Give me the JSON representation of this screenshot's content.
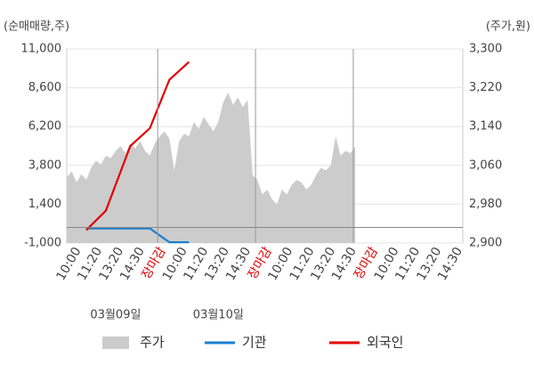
{
  "chart_data": {
    "type": "line",
    "ylabel": "(순매매량,주)",
    "y2label": "(주가,원)",
    "xlim": [
      0,
      81
    ],
    "ylim": [
      -1000,
      11000
    ],
    "yticks": [
      {
        "value": -1000,
        "label": "-1,000"
      },
      {
        "value": 1400,
        "label": "1,400"
      },
      {
        "value": 3800,
        "label": "3,800"
      },
      {
        "value": 6200,
        "label": "6,200"
      },
      {
        "value": 8600,
        "label": "8,600"
      },
      {
        "value": 11000,
        "label": "11,000"
      }
    ],
    "y2lim": [
      2900,
      3300
    ],
    "y2ticks": [
      {
        "value": 2900,
        "label": "2,900"
      },
      {
        "value": 2980,
        "label": "2,980"
      },
      {
        "value": 3060,
        "label": "3,060"
      },
      {
        "value": 3140,
        "label": "3,140"
      },
      {
        "value": 3220,
        "label": "3,220"
      },
      {
        "value": 3300,
        "label": "3,300"
      }
    ],
    "xticks": [
      {
        "value": 2.3,
        "label": "10:00"
      },
      {
        "value": 6.6,
        "label": "11:20"
      },
      {
        "value": 11,
        "label": "13:20"
      },
      {
        "value": 15.3,
        "label": "14:30"
      },
      {
        "value": 19.6,
        "label": "장마감",
        "color": "#e00000"
      },
      {
        "value": 24,
        "label": "10:00"
      },
      {
        "value": 28.3,
        "label": "11:20"
      },
      {
        "value": 32.6,
        "label": "13:20"
      },
      {
        "value": 37,
        "label": "14:30"
      },
      {
        "value": 41.3,
        "label": "장마감",
        "color": "#e00000"
      },
      {
        "value": 45.6,
        "label": "10:00"
      },
      {
        "value": 50,
        "label": "11:20"
      },
      {
        "value": 54.3,
        "label": "13:20"
      },
      {
        "value": 58.6,
        "label": "14:30"
      },
      {
        "value": 63,
        "label": "장마감",
        "color": "#e00000"
      },
      {
        "value": 67.3,
        "label": "10:00"
      },
      {
        "value": 71.6,
        "label": "11:20"
      },
      {
        "value": 76,
        "label": "13:20"
      },
      {
        "value": 80.3,
        "label": "14:30"
      }
    ],
    "xgrid": [
      18.6,
      38.6,
      58.6
    ],
    "date_labels": [
      {
        "value": 10,
        "label": "03월09일"
      },
      {
        "value": 31,
        "label": "03월10일"
      }
    ],
    "series": [
      {
        "name": "주가",
        "color": "#cccccc",
        "kind": "area",
        "axis": "y2",
        "x": [
          0,
          1,
          2,
          3,
          4,
          5,
          6,
          7,
          8,
          9,
          10,
          11,
          12,
          13,
          14,
          15,
          16,
          17,
          18,
          19,
          20,
          21,
          22,
          23,
          24,
          25,
          26,
          27,
          28,
          29,
          30,
          31,
          32,
          33,
          34,
          35,
          36,
          37,
          38,
          39,
          40,
          41,
          42,
          43,
          44,
          45,
          46,
          47,
          48,
          49,
          50,
          51,
          52,
          53,
          54,
          55,
          56,
          57,
          58,
          59
        ],
        "values": [
          3035,
          3048,
          3025,
          3042,
          3030,
          3055,
          3070,
          3062,
          3080,
          3075,
          3090,
          3100,
          3085,
          3105,
          3095,
          3110,
          3090,
          3080,
          3105,
          3120,
          3130,
          3115,
          3050,
          3110,
          3125,
          3120,
          3150,
          3135,
          3160,
          3145,
          3130,
          3150,
          3190,
          3210,
          3185,
          3200,
          3180,
          3195,
          3040,
          3030,
          3000,
          3010,
          2990,
          2980,
          3010,
          3000,
          3020,
          3030,
          3025,
          3010,
          3020,
          3040,
          3055,
          3050,
          3060,
          3120,
          3080,
          3090,
          3085,
          3100
        ]
      },
      {
        "name": "기관",
        "color": "#1a7fd0",
        "kind": "line",
        "x": [
          4,
          8,
          13,
          17,
          21,
          25
        ],
        "values": [
          -100,
          -100,
          -100,
          -100,
          -950,
          -950
        ]
      },
      {
        "name": "외국인",
        "color": "#e00000",
        "kind": "line",
        "x": [
          4,
          8,
          13,
          17,
          21,
          25
        ],
        "values": [
          -200,
          1000,
          5000,
          6100,
          9100,
          10200
        ]
      }
    ]
  }
}
